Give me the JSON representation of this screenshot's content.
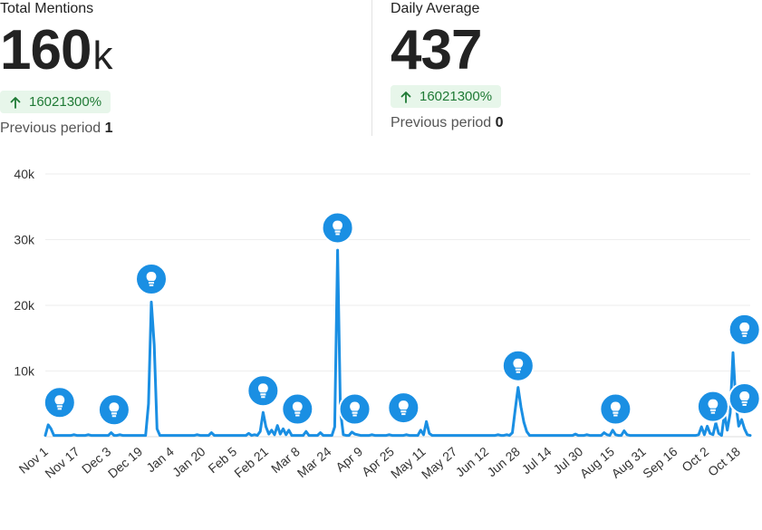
{
  "stats": {
    "total": {
      "label": "Total Mentions",
      "value": "160",
      "unit": "k",
      "change": "16021300%",
      "previous_label": "Previous period",
      "previous_value": "1"
    },
    "daily": {
      "label": "Daily Average",
      "value": "437",
      "change": "16021300%",
      "previous_label": "Previous period",
      "previous_value": "0"
    }
  },
  "colors": {
    "line": "#1a8fe3",
    "badge_bg": "#e7f6ea",
    "badge_text": "#1f7a35",
    "grid": "#eeeeee"
  },
  "chart_data": {
    "type": "line",
    "ylim": [
      0,
      40000
    ],
    "yticks": [
      {
        "value": 10000,
        "label": "10k"
      },
      {
        "value": 20000,
        "label": "20k"
      },
      {
        "value": 30000,
        "label": "30k"
      },
      {
        "value": 40000,
        "label": "40k"
      }
    ],
    "xticks": [
      "Nov 1",
      "Nov 17",
      "Dec 3",
      "Dec 19",
      "Jan 4",
      "Jan 20",
      "Feb 5",
      "Feb 21",
      "Mar 8",
      "Mar 24",
      "Apr 9",
      "Apr 25",
      "May 11",
      "May 27",
      "Jun 12",
      "Jun 28",
      "Jul 14",
      "Jul 30",
      "Aug 15",
      "Aug 31",
      "Sep 16",
      "Oct 2",
      "Oct 18"
    ],
    "marker_icon": "lightbulb-icon",
    "series": [
      {
        "points": [
          [
            0,
            200
          ],
          [
            1,
            1800
          ],
          [
            2,
            1200
          ],
          [
            3,
            200
          ],
          [
            8,
            200
          ],
          [
            10,
            300
          ],
          [
            14,
            200
          ],
          [
            15,
            300
          ],
          [
            22,
            200
          ],
          [
            23,
            600
          ],
          [
            24,
            200
          ],
          [
            26,
            300
          ],
          [
            35,
            200
          ],
          [
            36,
            5000
          ],
          [
            37,
            20500
          ],
          [
            38,
            14000
          ],
          [
            39,
            1200
          ],
          [
            40,
            200
          ],
          [
            52,
            200
          ],
          [
            53,
            300
          ],
          [
            57,
            200
          ],
          [
            58,
            600
          ],
          [
            59,
            200
          ],
          [
            70,
            200
          ],
          [
            71,
            500
          ],
          [
            72,
            200
          ],
          [
            73,
            300
          ],
          [
            74,
            200
          ],
          [
            75,
            800
          ],
          [
            76,
            3700
          ],
          [
            77,
            1500
          ],
          [
            78,
            400
          ],
          [
            79,
            1000
          ],
          [
            80,
            300
          ],
          [
            81,
            1700
          ],
          [
            82,
            400
          ],
          [
            83,
            1200
          ],
          [
            84,
            300
          ],
          [
            85,
            1000
          ],
          [
            86,
            200
          ],
          [
            90,
            200
          ],
          [
            91,
            800
          ],
          [
            92,
            200
          ],
          [
            95,
            200
          ],
          [
            96,
            600
          ],
          [
            97,
            200
          ],
          [
            100,
            200
          ],
          [
            101,
            1500
          ],
          [
            102,
            28400
          ],
          [
            103,
            4000
          ],
          [
            104,
            300
          ],
          [
            106,
            200
          ],
          [
            107,
            700
          ],
          [
            108,
            400
          ],
          [
            109,
            300
          ],
          [
            110,
            200
          ],
          [
            113,
            200
          ],
          [
            114,
            300
          ],
          [
            116,
            200
          ],
          [
            118,
            200
          ],
          [
            120,
            300
          ],
          [
            121,
            200
          ],
          [
            125,
            200
          ],
          [
            126,
            300
          ],
          [
            127,
            200
          ],
          [
            130,
            200
          ],
          [
            131,
            1000
          ],
          [
            132,
            300
          ],
          [
            133,
            2300
          ],
          [
            134,
            500
          ],
          [
            135,
            200
          ],
          [
            140,
            200
          ],
          [
            145,
            200
          ],
          [
            150,
            200
          ],
          [
            155,
            200
          ],
          [
            158,
            300
          ],
          [
            159,
            200
          ],
          [
            161,
            300
          ],
          [
            162,
            200
          ],
          [
            163,
            600
          ],
          [
            164,
            4200
          ],
          [
            165,
            7500
          ],
          [
            166,
            4500
          ],
          [
            167,
            2200
          ],
          [
            168,
            800
          ],
          [
            169,
            200
          ],
          [
            175,
            200
          ],
          [
            180,
            200
          ],
          [
            184,
            200
          ],
          [
            185,
            400
          ],
          [
            186,
            200
          ],
          [
            189,
            300
          ],
          [
            190,
            200
          ],
          [
            194,
            200
          ],
          [
            195,
            600
          ],
          [
            196,
            300
          ],
          [
            197,
            200
          ],
          [
            198,
            1000
          ],
          [
            199,
            300
          ],
          [
            200,
            200
          ],
          [
            202,
            900
          ],
          [
            203,
            300
          ],
          [
            204,
            200
          ],
          [
            210,
            200
          ],
          [
            215,
            200
          ],
          [
            220,
            200
          ],
          [
            225,
            200
          ],
          [
            228,
            300
          ],
          [
            229,
            1500
          ],
          [
            230,
            300
          ],
          [
            231,
            1600
          ],
          [
            232,
            500
          ],
          [
            233,
            300
          ],
          [
            234,
            2100
          ],
          [
            235,
            500
          ],
          [
            236,
            200
          ],
          [
            237,
            3500
          ],
          [
            238,
            1000
          ],
          [
            239,
            3600
          ],
          [
            240,
            12800
          ],
          [
            241,
            5000
          ],
          [
            242,
            1600
          ],
          [
            243,
            2600
          ],
          [
            244,
            1200
          ],
          [
            245,
            300
          ],
          [
            246,
            200
          ]
        ],
        "markers": [
          {
            "x": 5,
            "y": 5200
          },
          {
            "x": 24,
            "y": 4100
          },
          {
            "x": 37,
            "y": 24000
          },
          {
            "x": 76,
            "y": 7000
          },
          {
            "x": 88,
            "y": 4200
          },
          {
            "x": 102,
            "y": 31800
          },
          {
            "x": 108,
            "y": 4200
          },
          {
            "x": 125,
            "y": 4400
          },
          {
            "x": 165,
            "y": 10800
          },
          {
            "x": 199,
            "y": 4200
          },
          {
            "x": 233,
            "y": 4600
          },
          {
            "x": 244,
            "y": 16300
          },
          {
            "x": 244,
            "y": 5800
          }
        ]
      }
    ],
    "x_domain": [
      0,
      246
    ]
  }
}
